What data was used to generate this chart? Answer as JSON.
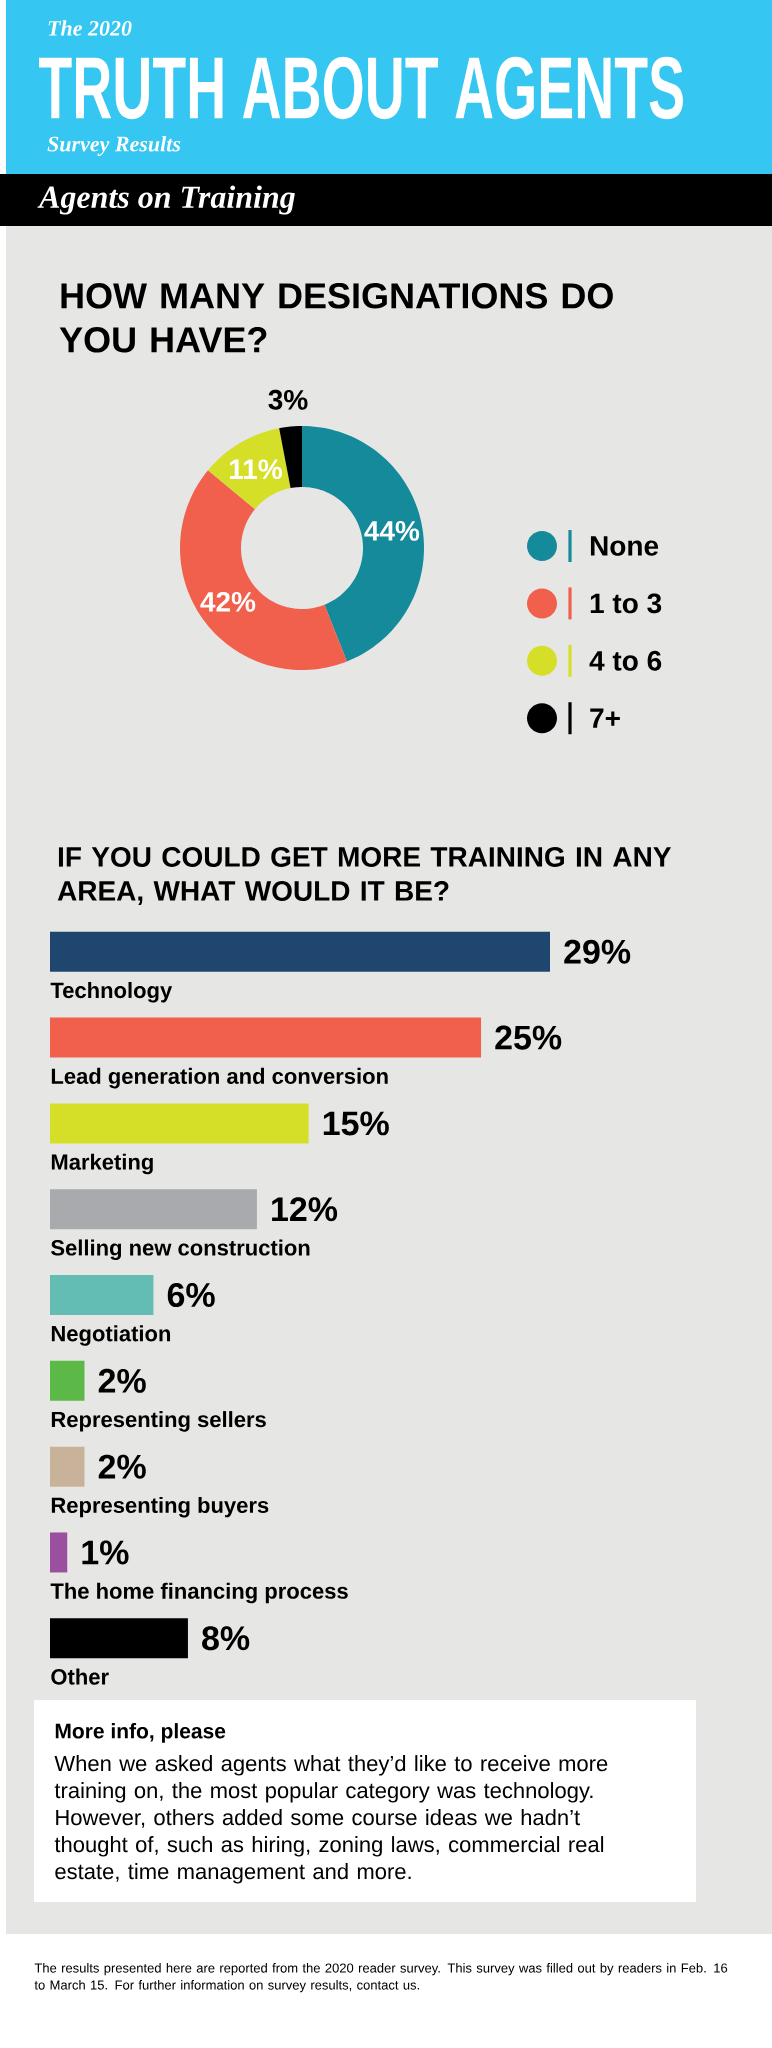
{
  "chart_data": [
    {
      "type": "donut",
      "title": "HOW MANY DESIGNATIONS DO YOU HAVE?",
      "categories": [
        "None",
        "1 to 3",
        "4 to 6",
        "7+"
      ],
      "values": [
        44,
        42,
        11,
        3
      ],
      "colors": [
        "#148a9b",
        "#f0604d",
        "#d5df27",
        "#000000"
      ],
      "value_labels": [
        "44%",
        "42%",
        "11%",
        "3%"
      ],
      "legend": "right",
      "annotations": [
        "The 2020",
        "TRUTH ABOUT AGENTS",
        "Survey Results",
        "Agents on Training"
      ]
    },
    {
      "type": "bar",
      "orientation": "horizontal",
      "title": "IF YOU COULD GET MORE TRAINING IN ANY AREA, WHAT WOULD IT BE?",
      "categories": [
        "Technology",
        "Lead generation and conversion",
        "Marketing",
        "Selling new construction",
        "Negotiation",
        "Representing sellers",
        "Representing buyers",
        "The home financing process",
        "Other"
      ],
      "values": [
        29,
        25,
        15,
        12,
        6,
        2,
        2,
        1,
        8
      ],
      "colors": [
        "#1f466f",
        "#f0604d",
        "#d5df27",
        "#a9aaad",
        "#63bdb5",
        "#5cb947",
        "#c8b39a",
        "#9a4f9f",
        "#000000"
      ],
      "value_labels": [
        "29%",
        "25%",
        "15%",
        "12%",
        "6%",
        "2%",
        "2%",
        "1%",
        "8%"
      ],
      "annotations": [
        "More info, please",
        "When we asked agents what they’d like to receive more training on, the most popular category was technology. However, others added some course ideas we hadn’t thought of, such as hiring, zoning laws, commercial real estate, time management and more.",
        "The results presented here are reported from the 2020 reader survey. This survey was filled out by readers in Feb. 16 to March 15. For further information on survey results, contact us."
      ]
    }
  ]
}
